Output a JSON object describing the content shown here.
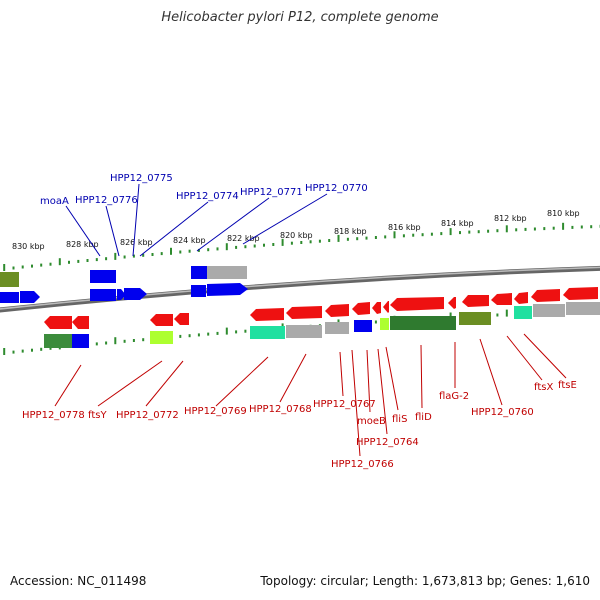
{
  "title": "Helicobacter pylori P12, complete genome",
  "footer": {
    "accession": "Accession: NC_011498",
    "topology": "Topology: circular; Length: 1,673,813 bp; Genes: 1,610"
  },
  "colors": {
    "forward_label": "#0000b0",
    "reverse_label": "#c00000",
    "backbone": "#888888",
    "tick": "#2e8b2e",
    "forward_gene": "#0000ee",
    "reverse_gene": "#ee1111",
    "pseudo": "#9a9a9a",
    "operon_green": "#3c8c3c",
    "olive": "#6b8e23",
    "lime": "#adff2f",
    "aqua": "#20e0a0"
  },
  "ticks": [
    "830 kbp",
    "828 kbp",
    "826 kbp",
    "824 kbp",
    "822 kbp",
    "820 kbp",
    "818 kbp",
    "816 kbp",
    "814 kbp",
    "812 kbp",
    "810 kbp"
  ],
  "forward_labels": [
    "moaA",
    "HPP12_0776",
    "HPP12_0775",
    "HPP12_0774",
    "HPP12_0771",
    "HPP12_0770"
  ],
  "reverse_labels": [
    "HPP12_0778",
    "ftsY",
    "HPP12_0772",
    "HPP12_0769",
    "HPP12_0768",
    "HPP12_0767",
    "moeB",
    "HPP12_0764",
    "HPP12_0766",
    "fliS",
    "fliD",
    "flaG-2",
    "HPP12_0760",
    "ftsX",
    "ftsE"
  ]
}
